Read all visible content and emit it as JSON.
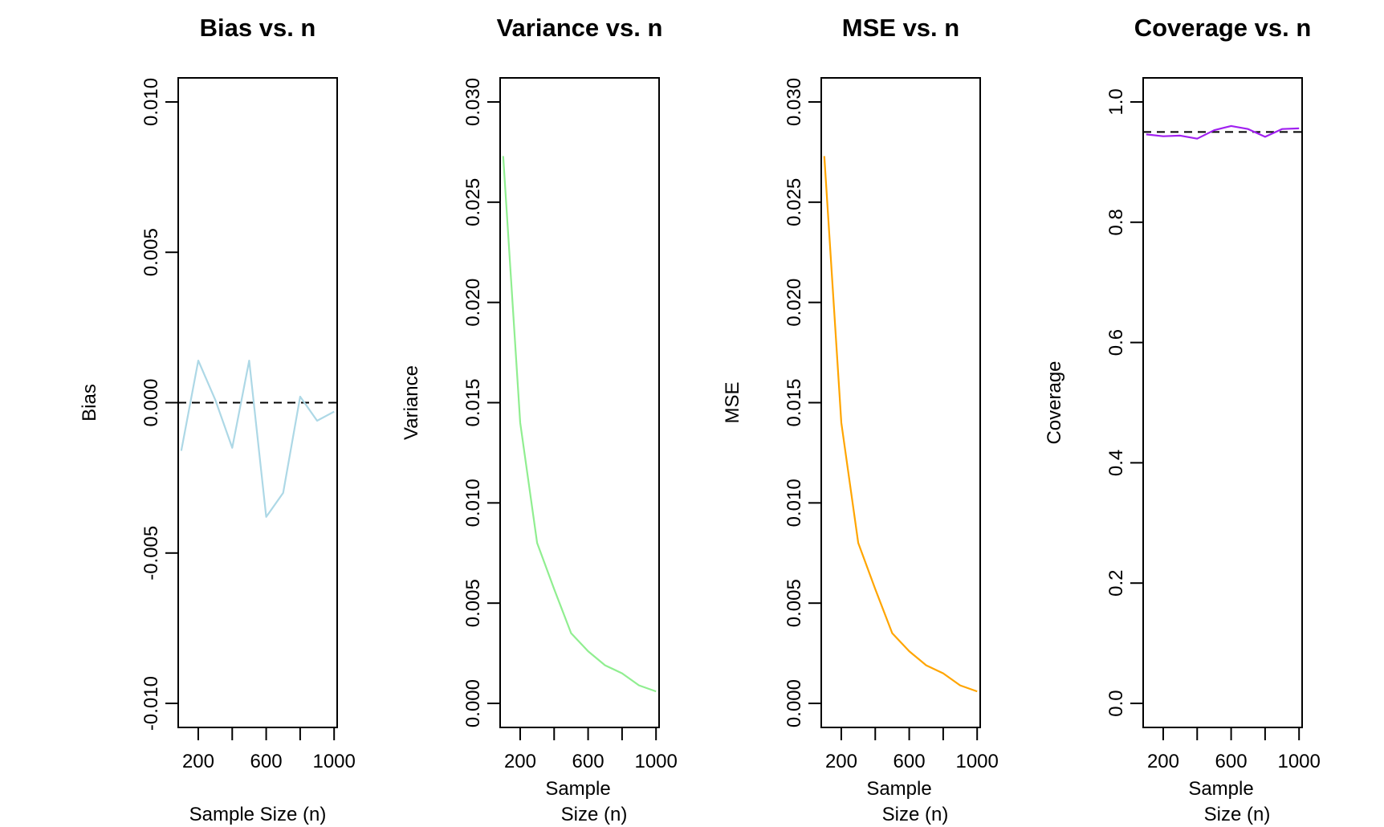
{
  "chart_data": [
    {
      "type": "line",
      "title": "Bias vs. n",
      "xlabel": "Sample Size (n)",
      "ylabel": "Bias",
      "xlim": [
        82,
        1018
      ],
      "ylim": [
        -0.0108,
        0.0108
      ],
      "x": [
        100,
        200,
        300,
        400,
        500,
        600,
        700,
        800,
        900,
        1000
      ],
      "values": [
        -0.0016,
        0.0014,
        0.0001,
        -0.0015,
        0.0014,
        -0.0038,
        -0.003,
        0.0002,
        -0.0006,
        -0.0003
      ],
      "xticks": [
        200,
        400,
        600,
        800,
        1000
      ],
      "xtick_labels": [
        "200",
        "",
        "600",
        "",
        "1000"
      ],
      "yticks": [
        -0.01,
        -0.005,
        0,
        0.005,
        0.01
      ],
      "ytick_labels": [
        "-0.010",
        "-0.005",
        "0.000",
        "0.005",
        "0.010"
      ],
      "reference_line": 0,
      "color": "#add8e6",
      "grid": false
    },
    {
      "type": "line",
      "title": "Variance vs. n",
      "xlabel": "Sample Size (n)",
      "ylabel": "Variance",
      "xlim": [
        82,
        1018
      ],
      "ylim": [
        -0.0012,
        0.0312
      ],
      "x": [
        100,
        200,
        300,
        400,
        500,
        600,
        700,
        800,
        900,
        1000
      ],
      "values": [
        0.0273,
        0.014,
        0.008,
        0.0057,
        0.0035,
        0.0026,
        0.0019,
        0.0015,
        0.0009,
        0.0006
      ],
      "xticks": [
        200,
        400,
        600,
        800,
        1000
      ],
      "xtick_labels": [
        "200",
        "",
        "600",
        "",
        "1000"
      ],
      "yticks": [
        0,
        0.005,
        0.01,
        0.015,
        0.02,
        0.025,
        0.03
      ],
      "ytick_labels": [
        "0.000",
        "0.005",
        "0.010",
        "0.015",
        "0.020",
        "0.025",
        "0.030"
      ],
      "color": "#90ee90",
      "grid": false
    },
    {
      "type": "line",
      "title": "MSE vs. n",
      "xlabel": "Sample Size (n)",
      "ylabel": "MSE",
      "xlim": [
        82,
        1018
      ],
      "ylim": [
        -0.0012,
        0.0312
      ],
      "x": [
        100,
        200,
        300,
        400,
        500,
        600,
        700,
        800,
        900,
        1000
      ],
      "values": [
        0.0273,
        0.014,
        0.008,
        0.0057,
        0.0035,
        0.0026,
        0.0019,
        0.0015,
        0.0009,
        0.0006
      ],
      "xticks": [
        200,
        400,
        600,
        800,
        1000
      ],
      "xtick_labels": [
        "200",
        "",
        "600",
        "",
        "1000"
      ],
      "yticks": [
        0,
        0.005,
        0.01,
        0.015,
        0.02,
        0.025,
        0.03
      ],
      "ytick_labels": [
        "0.000",
        "0.005",
        "0.010",
        "0.015",
        "0.020",
        "0.025",
        "0.030"
      ],
      "color": "#ffa500",
      "grid": false
    },
    {
      "type": "line",
      "title": "Coverage vs. n",
      "xlabel": "Sample Size (n)",
      "ylabel": "Coverage",
      "xlim": [
        82,
        1018
      ],
      "ylim": [
        -0.04,
        1.04
      ],
      "x": [
        100,
        200,
        300,
        400,
        500,
        600,
        700,
        800,
        900,
        1000
      ],
      "values": [
        0.946,
        0.943,
        0.944,
        0.939,
        0.953,
        0.96,
        0.955,
        0.942,
        0.955,
        0.956
      ],
      "xticks": [
        200,
        400,
        600,
        800,
        1000
      ],
      "xtick_labels": [
        "200",
        "",
        "600",
        "",
        "1000"
      ],
      "yticks": [
        0,
        0.2,
        0.4,
        0.6,
        0.8,
        1.0
      ],
      "ytick_labels": [
        "0.0",
        "0.2",
        "0.4",
        "0.6",
        "0.8",
        "1.0"
      ],
      "reference_line": 0.95,
      "color": "#a020f0",
      "grid": false
    }
  ]
}
